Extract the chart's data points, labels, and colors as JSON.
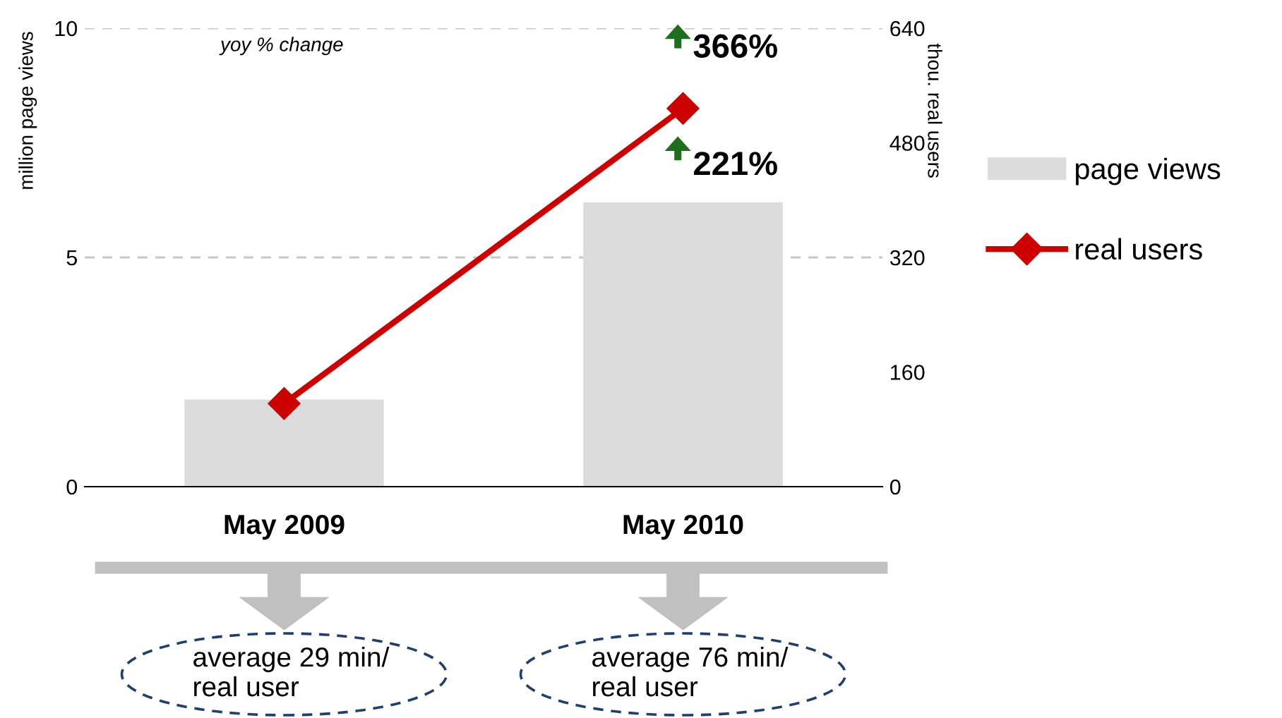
{
  "chart_data": {
    "type": "bar",
    "categories": [
      "May 2009",
      "May 2010"
    ],
    "series": [
      {
        "name": "page views",
        "color": "#dcdcdc",
        "values": [
          1.9,
          6.2
        ]
      },
      {
        "name": "real users",
        "type": "line",
        "axis": "y2",
        "color": "#cc0000",
        "values": [
          116,
          528
        ],
        "marker": "diamond"
      }
    ],
    "ylabel": "million page views",
    "y2label": "thou. real users",
    "ylim": [
      0,
      10
    ],
    "yticks": [
      0,
      5,
      10
    ],
    "y2lim": [
      0,
      640
    ],
    "y2ticks": [
      0,
      160,
      320,
      480,
      640
    ],
    "grid": "y",
    "legend": "right",
    "annotations": [
      "yoy % change",
      "366%",
      {
        "text": "221%",
        "x": "May 2010",
        "y": 6.2
      },
      "average 29 min/\nreal user",
      "average 76 min/\nreal user"
    ]
  }
}
